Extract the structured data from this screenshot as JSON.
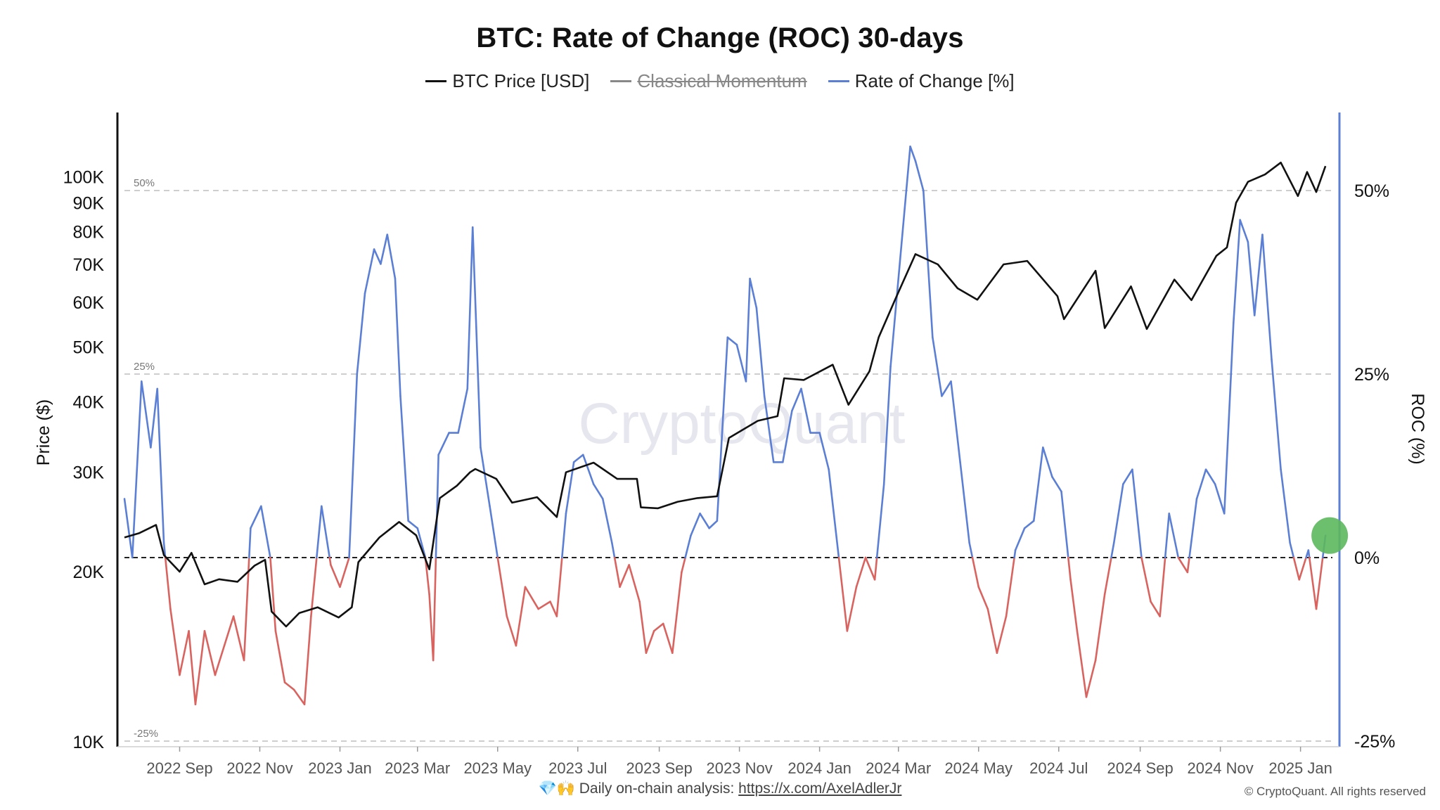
{
  "chart_data": {
    "type": "line",
    "title": "BTC: Rate of Change (ROC) 30-days",
    "legend": [
      {
        "label": "BTC Price [USD]",
        "color": "#111111",
        "enabled": true
      },
      {
        "label": "Classical Momentum",
        "color": "#888888",
        "enabled": false
      },
      {
        "label": "Rate of Change [%]",
        "color": "#5b7fd4",
        "enabled": true
      }
    ],
    "legend_position": "top-center",
    "left_axis": {
      "label": "Price ($)",
      "scale": "log",
      "range": [
        10000,
        130000
      ],
      "ticks": [
        "10K",
        "20K",
        "30K",
        "40K",
        "50K",
        "60K",
        "70K",
        "80K",
        "90K",
        "100K"
      ],
      "tick_values": [
        10000,
        20000,
        30000,
        40000,
        50000,
        60000,
        70000,
        80000,
        90000,
        100000
      ]
    },
    "right_axis": {
      "label": "ROC (%)",
      "range": [
        -25,
        60
      ],
      "ticks": [
        "50%",
        "25%",
        "0%",
        "-25%"
      ],
      "tick_values": [
        50,
        25,
        0,
        -25
      ]
    },
    "ref_lines": [
      {
        "value": 50,
        "label": "50%",
        "style": "dashed"
      },
      {
        "value": 25,
        "label": "25%",
        "style": "dashed"
      },
      {
        "value": 0,
        "label": "",
        "style": "dashed-dark"
      },
      {
        "value": -25,
        "label": "-25%",
        "style": "dashed"
      }
    ],
    "x_range": [
      "2022-07-21",
      "2025-01-21"
    ],
    "x_ticks": [
      {
        "label": "2022 Sep",
        "date": "2022-09-01"
      },
      {
        "label": "2022 Nov",
        "date": "2022-11-01"
      },
      {
        "label": "2023 Jan",
        "date": "2023-01-01"
      },
      {
        "label": "2023 Mar",
        "date": "2023-03-01"
      },
      {
        "label": "2023 May",
        "date": "2023-05-01"
      },
      {
        "label": "2023 Jul",
        "date": "2023-07-01"
      },
      {
        "label": "2023 Sep",
        "date": "2023-09-01"
      },
      {
        "label": "2023 Nov",
        "date": "2023-11-01"
      },
      {
        "label": "2024 Jan",
        "date": "2024-01-01"
      },
      {
        "label": "2024 Mar",
        "date": "2024-03-01"
      },
      {
        "label": "2024 May",
        "date": "2024-05-01"
      },
      {
        "label": "2024 Jul",
        "date": "2024-07-01"
      },
      {
        "label": "2024 Sep",
        "date": "2024-09-01"
      },
      {
        "label": "2024 Nov",
        "date": "2024-11-01"
      },
      {
        "label": "2025 Jan",
        "date": "2025-01-01"
      }
    ],
    "grid": false,
    "roc_colors": {
      "positive": "#5b7fd4",
      "negative": "#d9635f"
    },
    "marker": {
      "date": "2025-01-20",
      "roc": 3,
      "color": "#5cb85c"
    },
    "watermark": "CryptoQuant",
    "series": [
      {
        "name": "BTC Price [USD]",
        "axis": "left",
        "color": "#111111",
        "points": [
          [
            "2022-07-21",
            23000
          ],
          [
            "2022-08-01",
            23400
          ],
          [
            "2022-08-14",
            24200
          ],
          [
            "2022-08-20",
            21400
          ],
          [
            "2022-09-01",
            20000
          ],
          [
            "2022-09-10",
            21600
          ],
          [
            "2022-09-20",
            19000
          ],
          [
            "2022-10-01",
            19400
          ],
          [
            "2022-10-15",
            19200
          ],
          [
            "2022-10-28",
            20500
          ],
          [
            "2022-11-05",
            21000
          ],
          [
            "2022-11-10",
            17000
          ],
          [
            "2022-11-21",
            16000
          ],
          [
            "2022-12-01",
            16900
          ],
          [
            "2022-12-15",
            17300
          ],
          [
            "2022-12-31",
            16600
          ],
          [
            "2023-01-10",
            17300
          ],
          [
            "2023-01-15",
            20800
          ],
          [
            "2023-01-31",
            23000
          ],
          [
            "2023-02-15",
            24500
          ],
          [
            "2023-02-28",
            23200
          ],
          [
            "2023-03-10",
            20200
          ],
          [
            "2023-03-18",
            27000
          ],
          [
            "2023-03-31",
            28400
          ],
          [
            "2023-04-10",
            30000
          ],
          [
            "2023-04-14",
            30400
          ],
          [
            "2023-04-30",
            29200
          ],
          [
            "2023-05-12",
            26500
          ],
          [
            "2023-05-31",
            27100
          ],
          [
            "2023-06-15",
            25000
          ],
          [
            "2023-06-22",
            30000
          ],
          [
            "2023-07-13",
            31200
          ],
          [
            "2023-07-31",
            29200
          ],
          [
            "2023-08-15",
            29200
          ],
          [
            "2023-08-18",
            26000
          ],
          [
            "2023-08-31",
            25900
          ],
          [
            "2023-09-15",
            26600
          ],
          [
            "2023-09-30",
            27000
          ],
          [
            "2023-10-15",
            27200
          ],
          [
            "2023-10-24",
            34500
          ],
          [
            "2023-11-15",
            37000
          ],
          [
            "2023-11-30",
            37700
          ],
          [
            "2023-12-05",
            44000
          ],
          [
            "2023-12-20",
            43700
          ],
          [
            "2024-01-11",
            46500
          ],
          [
            "2024-01-23",
            39500
          ],
          [
            "2024-02-08",
            45300
          ],
          [
            "2024-02-15",
            52000
          ],
          [
            "2024-02-28",
            61000
          ],
          [
            "2024-03-14",
            73000
          ],
          [
            "2024-03-31",
            70000
          ],
          [
            "2024-04-15",
            63500
          ],
          [
            "2024-04-30",
            60600
          ],
          [
            "2024-05-20",
            70000
          ],
          [
            "2024-06-07",
            71000
          ],
          [
            "2024-06-30",
            61500
          ],
          [
            "2024-07-05",
            56000
          ],
          [
            "2024-07-29",
            68200
          ],
          [
            "2024-08-05",
            54000
          ],
          [
            "2024-08-25",
            64000
          ],
          [
            "2024-09-06",
            53800
          ],
          [
            "2024-09-27",
            65800
          ],
          [
            "2024-10-10",
            60500
          ],
          [
            "2024-10-29",
            72500
          ],
          [
            "2024-11-06",
            75000
          ],
          [
            "2024-11-13",
            90000
          ],
          [
            "2024-11-22",
            98000
          ],
          [
            "2024-12-05",
            101000
          ],
          [
            "2024-12-17",
            106000
          ],
          [
            "2024-12-30",
            92500
          ],
          [
            "2025-01-06",
            102000
          ],
          [
            "2025-01-13",
            94000
          ],
          [
            "2025-01-20",
            104500
          ]
        ]
      },
      {
        "name": "Rate of Change [%]",
        "axis": "right",
        "color": "#5b7fd4",
        "points": [
          [
            "2022-07-21",
            8
          ],
          [
            "2022-07-27",
            0
          ],
          [
            "2022-08-03",
            24
          ],
          [
            "2022-08-10",
            15
          ],
          [
            "2022-08-15",
            23
          ],
          [
            "2022-08-20",
            2
          ],
          [
            "2022-08-25",
            -7
          ],
          [
            "2022-09-01",
            -16
          ],
          [
            "2022-09-08",
            -10
          ],
          [
            "2022-09-13",
            -20
          ],
          [
            "2022-09-20",
            -10
          ],
          [
            "2022-09-28",
            -16
          ],
          [
            "2022-10-05",
            -12
          ],
          [
            "2022-10-12",
            -8
          ],
          [
            "2022-10-20",
            -14
          ],
          [
            "2022-10-25",
            4
          ],
          [
            "2022-11-02",
            7
          ],
          [
            "2022-11-09",
            0
          ],
          [
            "2022-11-13",
            -10
          ],
          [
            "2022-11-20",
            -17
          ],
          [
            "2022-11-27",
            -18
          ],
          [
            "2022-12-05",
            -20
          ],
          [
            "2022-12-10",
            -8
          ],
          [
            "2022-12-18",
            7
          ],
          [
            "2022-12-25",
            -1
          ],
          [
            "2023-01-01",
            -4
          ],
          [
            "2023-01-08",
            0
          ],
          [
            "2023-01-14",
            25
          ],
          [
            "2023-01-20",
            36
          ],
          [
            "2023-01-27",
            42
          ],
          [
            "2023-02-01",
            40
          ],
          [
            "2023-02-06",
            44
          ],
          [
            "2023-02-12",
            38
          ],
          [
            "2023-02-16",
            22
          ],
          [
            "2023-02-22",
            5
          ],
          [
            "2023-03-01",
            4
          ],
          [
            "2023-03-07",
            0
          ],
          [
            "2023-03-10",
            -5
          ],
          [
            "2023-03-13",
            -14
          ],
          [
            "2023-03-17",
            14
          ],
          [
            "2023-03-25",
            17
          ],
          [
            "2023-04-01",
            17
          ],
          [
            "2023-04-08",
            23
          ],
          [
            "2023-04-12",
            45
          ],
          [
            "2023-04-18",
            15
          ],
          [
            "2023-04-25",
            7
          ],
          [
            "2023-05-01",
            0
          ],
          [
            "2023-05-08",
            -8
          ],
          [
            "2023-05-15",
            -12
          ],
          [
            "2023-05-22",
            -4
          ],
          [
            "2023-06-01",
            -7
          ],
          [
            "2023-06-10",
            -6
          ],
          [
            "2023-06-15",
            -8
          ],
          [
            "2023-06-22",
            6
          ],
          [
            "2023-06-28",
            13
          ],
          [
            "2023-07-05",
            14
          ],
          [
            "2023-07-13",
            10
          ],
          [
            "2023-07-20",
            8
          ],
          [
            "2023-07-27",
            2
          ],
          [
            "2023-08-02",
            -4
          ],
          [
            "2023-08-09",
            -1
          ],
          [
            "2023-08-17",
            -6
          ],
          [
            "2023-08-22",
            -13
          ],
          [
            "2023-08-28",
            -10
          ],
          [
            "2023-09-04",
            -9
          ],
          [
            "2023-09-11",
            -13
          ],
          [
            "2023-09-18",
            -2
          ],
          [
            "2023-09-25",
            3
          ],
          [
            "2023-10-02",
            6
          ],
          [
            "2023-10-09",
            4
          ],
          [
            "2023-10-15",
            5
          ],
          [
            "2023-10-23",
            30
          ],
          [
            "2023-10-30",
            29
          ],
          [
            "2023-11-06",
            24
          ],
          [
            "2023-11-09",
            38
          ],
          [
            "2023-11-14",
            34
          ],
          [
            "2023-11-20",
            22
          ],
          [
            "2023-11-27",
            13
          ],
          [
            "2023-12-04",
            13
          ],
          [
            "2023-12-11",
            20
          ],
          [
            "2023-12-18",
            23
          ],
          [
            "2023-12-25",
            17
          ],
          [
            "2024-01-01",
            17
          ],
          [
            "2024-01-08",
            12
          ],
          [
            "2024-01-15",
            1
          ],
          [
            "2024-01-22",
            -10
          ],
          [
            "2024-01-29",
            -4
          ],
          [
            "2024-02-05",
            0
          ],
          [
            "2024-02-12",
            -3
          ],
          [
            "2024-02-19",
            10
          ],
          [
            "2024-02-24",
            26
          ],
          [
            "2024-02-28",
            34
          ],
          [
            "2024-03-05",
            46
          ],
          [
            "2024-03-10",
            56
          ],
          [
            "2024-03-14",
            54
          ],
          [
            "2024-03-20",
            50
          ],
          [
            "2024-03-27",
            30
          ],
          [
            "2024-04-03",
            22
          ],
          [
            "2024-04-10",
            24
          ],
          [
            "2024-04-17",
            13
          ],
          [
            "2024-04-24",
            2
          ],
          [
            "2024-05-01",
            -4
          ],
          [
            "2024-05-08",
            -7
          ],
          [
            "2024-05-15",
            -13
          ],
          [
            "2024-05-22",
            -8
          ],
          [
            "2024-05-29",
            1
          ],
          [
            "2024-06-05",
            4
          ],
          [
            "2024-06-12",
            5
          ],
          [
            "2024-06-19",
            15
          ],
          [
            "2024-06-26",
            11
          ],
          [
            "2024-07-03",
            9
          ],
          [
            "2024-07-10",
            -3
          ],
          [
            "2024-07-15",
            -10
          ],
          [
            "2024-07-22",
            -19
          ],
          [
            "2024-07-29",
            -14
          ],
          [
            "2024-08-05",
            -5
          ],
          [
            "2024-08-12",
            2
          ],
          [
            "2024-08-19",
            10
          ],
          [
            "2024-08-26",
            12
          ],
          [
            "2024-09-02",
            0
          ],
          [
            "2024-09-09",
            -6
          ],
          [
            "2024-09-16",
            -8
          ],
          [
            "2024-09-23",
            6
          ],
          [
            "2024-09-30",
            0
          ],
          [
            "2024-10-07",
            -2
          ],
          [
            "2024-10-14",
            8
          ],
          [
            "2024-10-21",
            12
          ],
          [
            "2024-10-28",
            10
          ],
          [
            "2024-11-04",
            6
          ],
          [
            "2024-11-11",
            32
          ],
          [
            "2024-11-16",
            46
          ],
          [
            "2024-11-22",
            43
          ],
          [
            "2024-11-27",
            33
          ],
          [
            "2024-12-03",
            44
          ],
          [
            "2024-12-10",
            27
          ],
          [
            "2024-12-17",
            12
          ],
          [
            "2024-12-24",
            2
          ],
          [
            "2024-12-31",
            -3
          ],
          [
            "2025-01-07",
            1
          ],
          [
            "2025-01-13",
            -7
          ],
          [
            "2025-01-20",
            3
          ]
        ]
      }
    ]
  },
  "footer": {
    "icons": "💎🙌",
    "prefix": "Daily on-chain analysis:",
    "link_text": "https://x.com/AxelAdlerJr",
    "copyright": "© CryptoQuant. All rights reserved"
  }
}
